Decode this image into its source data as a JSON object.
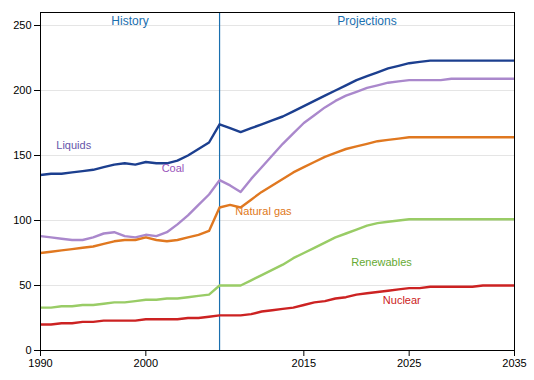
{
  "chart_data": {
    "type": "line",
    "x": [
      1990,
      1991,
      1992,
      1993,
      1994,
      1995,
      1996,
      1997,
      1998,
      1999,
      2000,
      2001,
      2002,
      2003,
      2004,
      2005,
      2006,
      2007,
      2008,
      2009,
      2010,
      2011,
      2012,
      2013,
      2014,
      2015,
      2016,
      2017,
      2018,
      2019,
      2020,
      2021,
      2022,
      2023,
      2024,
      2025,
      2026,
      2027,
      2028,
      2029,
      2030,
      2031,
      2032,
      2033,
      2034,
      2035
    ],
    "xlim": [
      1990,
      2035
    ],
    "xticks": [
      1990,
      2000,
      2015,
      2025,
      2035
    ],
    "ylim": [
      0,
      260
    ],
    "yticks": [
      0,
      50,
      100,
      150,
      200,
      250
    ],
    "grid": "y",
    "vline": {
      "x": 2007,
      "color": "#1a6faf"
    },
    "annotations": [
      {
        "text": "History",
        "x": 1998.5,
        "y": 257,
        "color": "#1a6faf"
      },
      {
        "text": "Projections",
        "x": 2021,
        "y": 257,
        "color": "#1a6faf"
      }
    ],
    "series": [
      {
        "name": "Liquids",
        "color": "#1c3f8f",
        "values": [
          135,
          136,
          136,
          137,
          138,
          139,
          141,
          143,
          144,
          143,
          145,
          144,
          144,
          146,
          150,
          155,
          160,
          174,
          171,
          168,
          171,
          174,
          177,
          180,
          184,
          188,
          192,
          196,
          200,
          204,
          208,
          211,
          214,
          217,
          219,
          221,
          222,
          223,
          223,
          223,
          223,
          223,
          223,
          223,
          223,
          223
        ],
        "label_x": 1991.5,
        "label_y": 155,
        "label_color": "#6655aa"
      },
      {
        "name": "Coal",
        "color": "#aa88cc",
        "values": [
          88,
          87,
          86,
          85,
          85,
          87,
          90,
          91,
          88,
          87,
          89,
          88,
          91,
          97,
          104,
          112,
          120,
          131,
          127,
          122,
          132,
          141,
          150,
          159,
          167,
          175,
          181,
          187,
          192,
          196,
          199,
          202,
          204,
          206,
          207,
          208,
          208,
          208,
          208,
          209,
          209,
          209,
          209,
          209,
          209,
          209
        ],
        "label_x": 2001.5,
        "label_y": 137,
        "label_color": "#9955bb"
      },
      {
        "name": "Natural gas",
        "color": "#e07820",
        "values": [
          75,
          76,
          77,
          78,
          79,
          80,
          82,
          84,
          85,
          85,
          87,
          85,
          84,
          85,
          87,
          89,
          92,
          110,
          112,
          110,
          116,
          122,
          127,
          132,
          137,
          141,
          145,
          149,
          152,
          155,
          157,
          159,
          161,
          162,
          163,
          164,
          164,
          164,
          164,
          164,
          164,
          164,
          164,
          164,
          164,
          164
        ],
        "label_x": 2008.5,
        "label_y": 104,
        "label_color": "#e07820"
      },
      {
        "name": "Renewables",
        "color": "#99cc66",
        "values": [
          33,
          33,
          34,
          34,
          35,
          35,
          36,
          37,
          37,
          38,
          39,
          39,
          40,
          40,
          41,
          42,
          43,
          50,
          50,
          50,
          54,
          58,
          62,
          66,
          71,
          75,
          79,
          83,
          87,
          90,
          93,
          96,
          98,
          99,
          100,
          101,
          101,
          101,
          101,
          101,
          101,
          101,
          101,
          101,
          101,
          101
        ],
        "label_x": 2019.5,
        "label_y": 65,
        "label_color": "#66aa33"
      },
      {
        "name": "Nuclear",
        "color": "#cc2222",
        "values": [
          20,
          20,
          21,
          21,
          22,
          22,
          23,
          23,
          23,
          23,
          24,
          24,
          24,
          24,
          25,
          25,
          26,
          27,
          27,
          27,
          28,
          30,
          31,
          32,
          33,
          35,
          37,
          38,
          40,
          41,
          43,
          44,
          45,
          46,
          47,
          48,
          48,
          49,
          49,
          49,
          49,
          49,
          50,
          50,
          50,
          50
        ],
        "label_x": 2022.5,
        "label_y": 36,
        "label_color": "#cc2222"
      }
    ]
  }
}
